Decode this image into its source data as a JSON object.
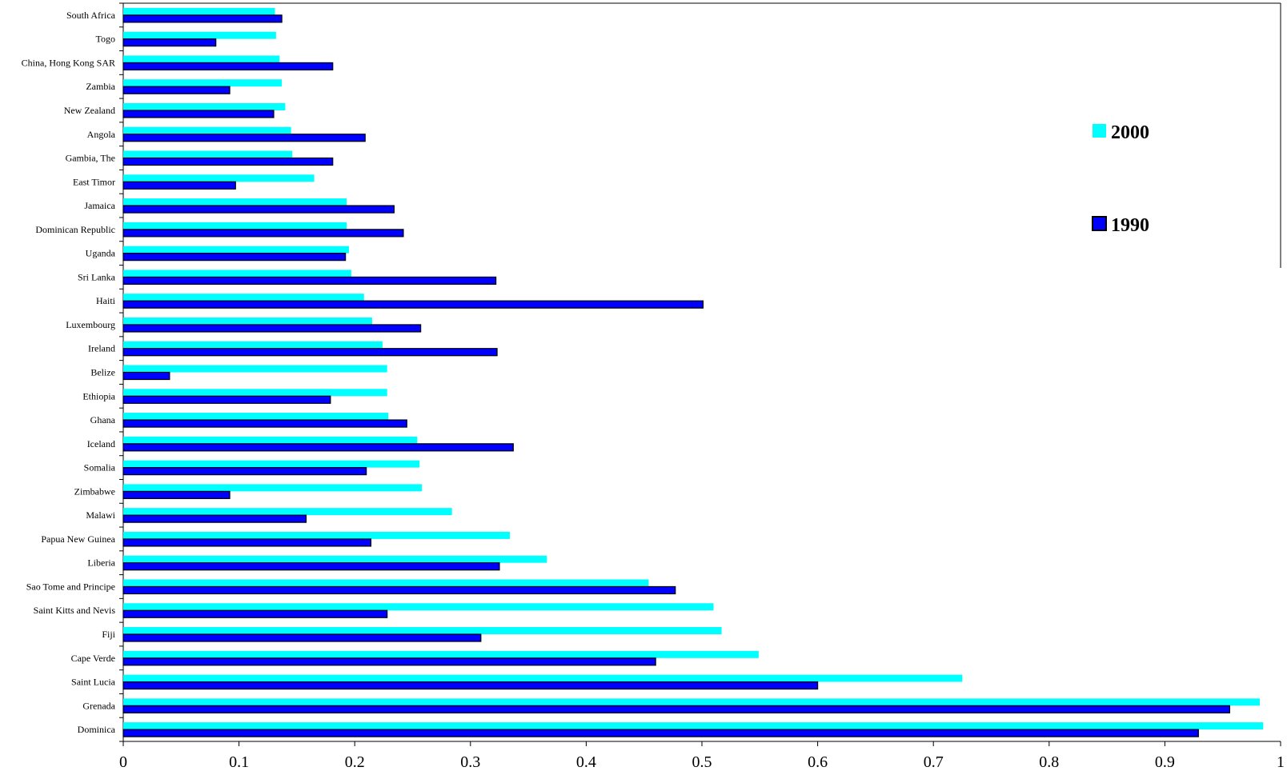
{
  "chart_data": {
    "type": "bar",
    "orientation": "horizontal",
    "title": "",
    "xlabel": "",
    "ylabel": "",
    "xlim": [
      0,
      1
    ],
    "xticks": [
      "0",
      "0.1",
      "0.2",
      "0.3",
      "0.4",
      "0.5",
      "0.6",
      "0.7",
      "0.8",
      "0.9",
      "1"
    ],
    "grid": false,
    "legend_position": "right",
    "categories": [
      "Dominica",
      "Grenada",
      "Saint Lucia",
      "Cape Verde",
      "Fiji",
      "Saint Kitts and Nevis",
      "Sao Tome and Principe",
      "Liberia",
      "Papua New Guinea",
      "Malawi",
      "Zimbabwe",
      "Somalia",
      "Iceland",
      "Ghana",
      "Ethiopia",
      "Belize",
      "Ireland",
      "Luxembourg",
      "Haiti",
      "Sri Lanka",
      "Uganda",
      "Dominican Republic",
      "Jamaica",
      "East Timor",
      "Gambia, The",
      "Angola",
      "New Zealand",
      "Zambia",
      "China, Hong Kong SAR",
      "Togo",
      "South Africa"
    ],
    "series": [
      {
        "name": "2000",
        "color": "#00ffff",
        "values": [
          0.985,
          0.982,
          0.725,
          0.549,
          0.517,
          0.51,
          0.454,
          0.366,
          0.334,
          0.284,
          0.258,
          0.256,
          0.254,
          0.229,
          0.228,
          0.228,
          0.224,
          0.215,
          0.208,
          0.197,
          0.195,
          0.193,
          0.193,
          0.165,
          0.146,
          0.145,
          0.14,
          0.137,
          0.135,
          0.132,
          0.131
        ]
      },
      {
        "name": "1990",
        "color": "#0000ff",
        "values": [
          0.929,
          0.956,
          0.6,
          0.46,
          0.309,
          0.228,
          0.477,
          0.325,
          0.214,
          0.158,
          0.092,
          0.21,
          0.337,
          0.245,
          0.179,
          0.04,
          0.323,
          0.257,
          0.501,
          0.322,
          0.192,
          0.242,
          0.234,
          0.097,
          0.181,
          0.209,
          0.13,
          0.092,
          0.181,
          0.08,
          0.137
        ]
      }
    ]
  }
}
